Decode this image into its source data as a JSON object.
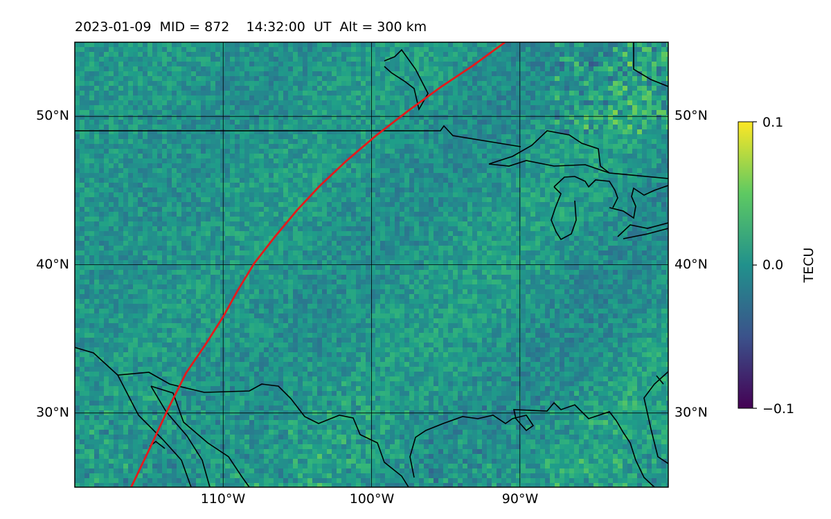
{
  "title": "2023-01-09  MID = 872    14:32:00  UT  Alt = 300 km",
  "map": {
    "lat_range": [
      25,
      55
    ],
    "lon_range": [
      -120,
      -80
    ],
    "lat_gridlines": [
      30,
      40,
      50
    ],
    "lon_gridlines": [
      -110,
      -100,
      -90
    ],
    "lat_labels": [
      "30°N",
      "40°N",
      "50°N"
    ],
    "lon_labels": [
      "110°W",
      "100°W",
      "90°W"
    ],
    "grid": true,
    "track_color": "#e41a1c",
    "coastline_color": "#000000"
  },
  "track": [
    [
      -116.2,
      25.0
    ],
    [
      -115.0,
      27.5
    ],
    [
      -113.7,
      30.3
    ],
    [
      -112.5,
      32.7
    ],
    [
      -111.2,
      34.6
    ],
    [
      -110.0,
      36.5
    ],
    [
      -109.0,
      38.3
    ],
    [
      -107.9,
      40.1
    ],
    [
      -106.5,
      41.9
    ],
    [
      -105.0,
      43.7
    ],
    [
      -103.5,
      45.3
    ],
    [
      -101.7,
      47.0
    ],
    [
      -99.7,
      48.7
    ],
    [
      -97.5,
      50.4
    ],
    [
      -95.3,
      52.0
    ],
    [
      -93.2,
      53.4
    ],
    [
      -91.0,
      55.0
    ]
  ],
  "colorbar": {
    "label": "TECU",
    "ticks": [
      "0.1",
      "0.0",
      "−0.1"
    ],
    "min": -0.1,
    "max": 0.1,
    "colormap": "viridis"
  }
}
